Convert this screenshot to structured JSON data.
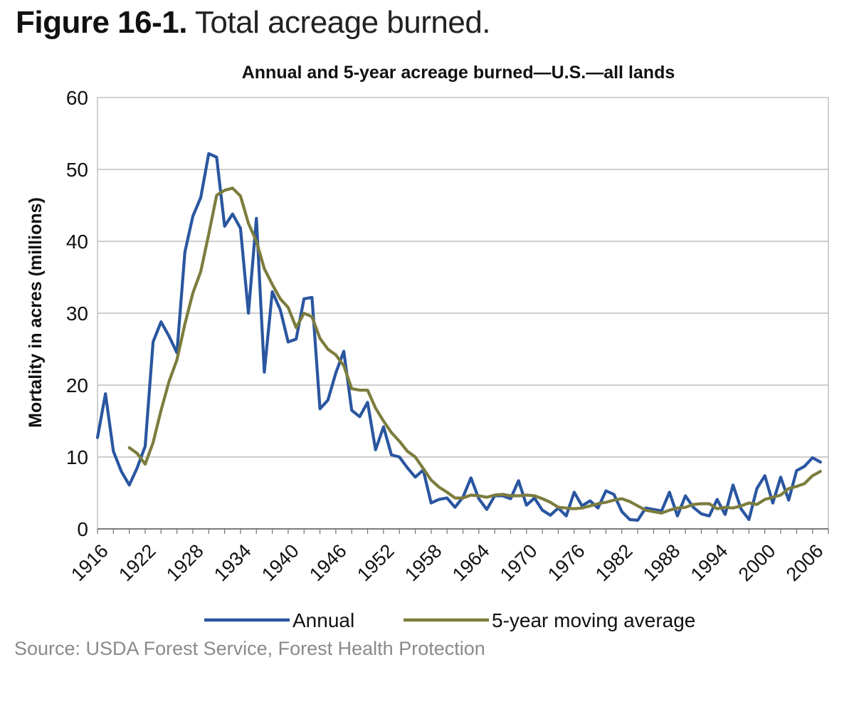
{
  "figure": {
    "number": "Figure 16-1.",
    "description": "Total acreage burned.",
    "source": "Source: USDA Forest Service, Forest Health Protection"
  },
  "chart_data": {
    "type": "line",
    "title": "Annual and 5-year acreage burned—U.S.—all lands",
    "xlabel": "",
    "ylabel": "Mortality in acres (millions)",
    "xlim": [
      1916,
      2008
    ],
    "ylim": [
      0,
      60
    ],
    "yticks": [
      0,
      10,
      20,
      30,
      40,
      50,
      60
    ],
    "xticks": [
      1916,
      1922,
      1928,
      1934,
      1940,
      1946,
      1952,
      1958,
      1964,
      1970,
      1976,
      1982,
      1988,
      1994,
      2000,
      2006
    ],
    "grid": true,
    "legend_position": "bottom",
    "series": [
      {
        "name": "Annual",
        "color": "#2a56a0",
        "x": [
          1916,
          1917,
          1918,
          1919,
          1920,
          1921,
          1922,
          1923,
          1924,
          1925,
          1926,
          1927,
          1928,
          1929,
          1930,
          1931,
          1932,
          1933,
          1934,
          1935,
          1936,
          1937,
          1938,
          1939,
          1940,
          1941,
          1942,
          1943,
          1944,
          1945,
          1946,
          1947,
          1948,
          1949,
          1950,
          1951,
          1952,
          1953,
          1954,
          1955,
          1956,
          1957,
          1958,
          1959,
          1960,
          1961,
          1962,
          1963,
          1964,
          1965,
          1966,
          1967,
          1968,
          1969,
          1970,
          1971,
          1972,
          1973,
          1974,
          1975,
          1976,
          1977,
          1978,
          1979,
          1980,
          1981,
          1982,
          1983,
          1984,
          1985,
          1986,
          1987,
          1988,
          1989,
          1990,
          1991,
          1992,
          1993,
          1994,
          1995,
          1996,
          1997,
          1998,
          1999,
          2000,
          2001,
          2002,
          2003,
          2004,
          2005,
          2006,
          2007
        ],
        "values": [
          12.7,
          18.8,
          10.8,
          8.0,
          6.1,
          8.5,
          11.5,
          26.0,
          28.8,
          26.8,
          24.5,
          38.5,
          43.5,
          46.1,
          52.2,
          51.7,
          42.1,
          43.8,
          41.8,
          30.0,
          43.2,
          21.8,
          33.0,
          30.5,
          26.0,
          26.4,
          32.0,
          32.2,
          16.7,
          17.9,
          21.7,
          24.7,
          16.5,
          15.6,
          17.6,
          11.0,
          14.2,
          10.3,
          10.0,
          8.5,
          7.2,
          8.2,
          3.6,
          4.1,
          4.3,
          3.0,
          4.4,
          7.1,
          4.2,
          2.7,
          4.6,
          4.6,
          4.2,
          6.7,
          3.3,
          4.3,
          2.6,
          1.9,
          2.9,
          1.8,
          5.1,
          3.2,
          3.9,
          2.9,
          5.3,
          4.8,
          2.4,
          1.3,
          1.2,
          2.9,
          2.7,
          2.5,
          5.1,
          1.8,
          4.6,
          3.0,
          2.1,
          1.8,
          4.1,
          2.0,
          6.1,
          2.8,
          1.3,
          5.6,
          7.4,
          3.6,
          7.2,
          4.0,
          8.1,
          8.7,
          9.9,
          9.3
        ]
      },
      {
        "name": "5-year moving average",
        "color": "#7c7c3e",
        "x": [
          1920,
          1921,
          1922,
          1923,
          1924,
          1925,
          1926,
          1927,
          1928,
          1929,
          1930,
          1931,
          1932,
          1933,
          1934,
          1935,
          1936,
          1937,
          1938,
          1939,
          1940,
          1941,
          1942,
          1943,
          1944,
          1945,
          1946,
          1947,
          1948,
          1949,
          1950,
          1951,
          1952,
          1953,
          1954,
          1955,
          1956,
          1957,
          1958,
          1959,
          1960,
          1961,
          1962,
          1963,
          1964,
          1965,
          1966,
          1967,
          1968,
          1969,
          1970,
          1971,
          1972,
          1973,
          1974,
          1975,
          1976,
          1977,
          1978,
          1979,
          1980,
          1981,
          1982,
          1983,
          1984,
          1985,
          1986,
          1987,
          1988,
          1989,
          1990,
          1991,
          1992,
          1993,
          1994,
          1995,
          1996,
          1997,
          1998,
          1999,
          2000,
          2001,
          2002,
          2003,
          2004,
          2005,
          2006,
          2007
        ],
        "values": [
          11.3,
          10.5,
          9.0,
          12.0,
          16.5,
          20.5,
          23.5,
          28.5,
          32.8,
          35.8,
          41.0,
          46.4,
          47.1,
          47.4,
          46.3,
          42.5,
          40.0,
          36.2,
          34.0,
          32.0,
          30.8,
          28.0,
          30.0,
          29.5,
          26.5,
          25.0,
          24.2,
          22.7,
          19.5,
          19.3,
          19.3,
          16.8,
          15.0,
          13.4,
          12.2,
          10.8,
          10.0,
          8.4,
          6.8,
          5.8,
          5.1,
          4.3,
          4.3,
          4.7,
          4.6,
          4.4,
          4.7,
          4.8,
          4.6,
          4.6,
          4.7,
          4.6,
          4.2,
          3.7,
          3.0,
          2.9,
          2.8,
          2.9,
          3.2,
          3.5,
          3.7,
          4.0,
          4.2,
          3.8,
          3.2,
          2.6,
          2.4,
          2.2,
          2.6,
          2.9,
          3.0,
          3.4,
          3.5,
          3.5,
          2.8,
          3.0,
          2.9,
          3.2,
          3.6,
          3.4,
          4.1,
          4.4,
          4.7,
          5.6,
          5.9,
          6.3,
          7.4,
          8.0
        ]
      }
    ]
  }
}
